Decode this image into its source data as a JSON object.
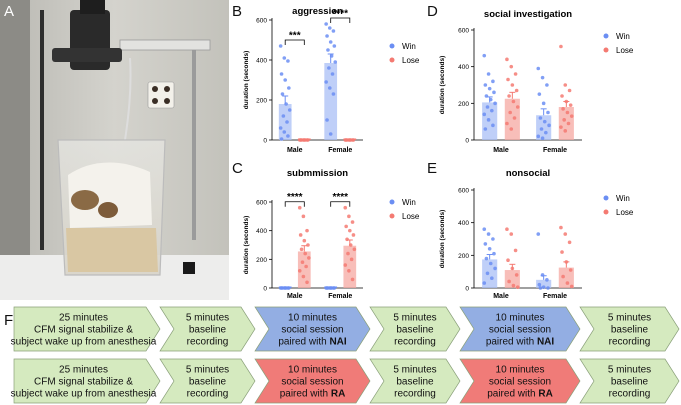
{
  "panels": {
    "A": "A",
    "B": "B",
    "C": "C",
    "D": "D",
    "E": "E",
    "F": "F"
  },
  "colors": {
    "win": "#6b8ef3",
    "lose": "#f47a72",
    "win_fill": "#a9bff5",
    "lose_fill": "#f5a8a2",
    "baseline_fill": "#d5eabf",
    "nai_fill": "#93aee3",
    "ra_fill": "#f07b78"
  },
  "chart_data": [
    {
      "id": "B",
      "type": "bar",
      "title": "aggression",
      "ylabel": "duration (seconds)",
      "categories": [
        "Male",
        "Female"
      ],
      "ylim": [
        0,
        600
      ],
      "yticks": [
        "0",
        "200",
        "400",
        "600"
      ],
      "legend": [
        "Win",
        "Lose"
      ],
      "series": [
        {
          "name": "Win",
          "values": [
            180,
            385
          ],
          "errors": [
            40,
            45
          ],
          "points": [
            [
              470,
              410,
              395,
              330,
              300,
              260,
              230,
              180,
              150,
              120,
              90,
              60,
              40,
              20,
              5
            ],
            [
              580,
              560,
              545,
              520,
              490,
              470,
              450,
              420,
              390,
              360,
              330,
              290,
              260,
              230,
              100,
              30
            ]
          ]
        },
        {
          "name": "Lose",
          "values": [
            0,
            0
          ],
          "errors": [
            0,
            0
          ],
          "points": [
            [
              0,
              0,
              0,
              0,
              0,
              0,
              0,
              0
            ],
            [
              0,
              0,
              0,
              0,
              0,
              0,
              0,
              0
            ]
          ]
        }
      ],
      "significance": [
        "***",
        "****"
      ]
    },
    {
      "id": "C",
      "type": "bar",
      "title": "submmission",
      "ylabel": "duration (seconds)",
      "categories": [
        "Male",
        "Female"
      ],
      "ylim": [
        0,
        600
      ],
      "yticks": [
        "0",
        "200",
        "400",
        "600"
      ],
      "legend": [
        "Win",
        "Lose"
      ],
      "series": [
        {
          "name": "Win",
          "values": [
            0,
            0
          ],
          "errors": [
            0,
            0
          ],
          "points": [
            [
              0,
              0,
              0,
              0,
              0,
              0,
              0,
              0
            ],
            [
              0,
              0,
              0,
              0,
              0,
              0,
              0,
              0
            ]
          ]
        },
        {
          "name": "Lose",
          "values": [
            255,
            295
          ],
          "errors": [
            40,
            40
          ],
          "points": [
            [
              560,
              500,
              400,
              370,
              330,
              300,
              270,
              240,
              210,
              180,
              150,
              120,
              80,
              40
            ],
            [
              560,
              500,
              460,
              430,
              400,
              370,
              340,
              300,
              270,
              240,
              200,
              160,
              120,
              60
            ]
          ]
        }
      ],
      "significance": [
        "****",
        "****"
      ]
    },
    {
      "id": "D",
      "type": "bar",
      "title": "social investigation",
      "ylabel": "duration (seconds)",
      "categories": [
        "Male",
        "Female"
      ],
      "ylim": [
        0,
        600
      ],
      "yticks": [
        "0",
        "200",
        "400",
        "600"
      ],
      "legend": [
        "Win",
        "Lose"
      ],
      "series": [
        {
          "name": "Win",
          "values": [
            205,
            135
          ],
          "errors": [
            30,
            35
          ],
          "points": [
            [
              460,
              360,
              320,
              300,
              280,
              260,
              240,
              220,
              200,
              180,
              160,
              140,
              110,
              80,
              60
            ],
            [
              390,
              340,
              300,
              250,
              200,
              150,
              120,
              100,
              80,
              60,
              40,
              20,
              10
            ]
          ]
        },
        {
          "name": "Lose",
          "values": [
            225,
            180
          ],
          "errors": [
            35,
            30
          ],
          "points": [
            [
              440,
              400,
              360,
              330,
              300,
              270,
              240,
              210,
              180,
              150,
              120,
              90,
              60
            ],
            [
              510,
              300,
              270,
              240,
              210,
              190,
              170,
              150,
              130,
              110,
              90,
              70,
              50
            ]
          ]
        }
      ]
    },
    {
      "id": "E",
      "type": "bar",
      "title": "nonsocial",
      "ylabel": "duration (seconds)",
      "categories": [
        "Male",
        "Female"
      ],
      "ylim": [
        0,
        600
      ],
      "yticks": [
        "0",
        "200",
        "400",
        "600"
      ],
      "legend": [
        "Win",
        "Lose"
      ],
      "series": [
        {
          "name": "Win",
          "values": [
            175,
            50
          ],
          "errors": [
            30,
            25
          ],
          "points": [
            [
              360,
              330,
              300,
              270,
              240,
              210,
              180,
              150,
              120,
              90,
              60,
              30
            ],
            [
              330,
              80,
              50,
              20,
              5,
              0,
              0
            ]
          ]
        },
        {
          "name": "Lose",
          "values": [
            110,
            125
          ],
          "errors": [
            35,
            35
          ],
          "points": [
            [
              360,
              330,
              230,
              170,
              120,
              80,
              40,
              15,
              5
            ],
            [
              370,
              330,
              280,
              220,
              160,
              110,
              70,
              30,
              10
            ]
          ]
        }
      ]
    }
  ],
  "flow": {
    "rows": [
      {
        "steps": [
          {
            "lines": [
              "25 minutes",
              "CFM signal stabilize &",
              "subject wake up from anesthesia"
            ],
            "kind": "baseline"
          },
          {
            "lines": [
              "5 minutes",
              "baseline",
              "recording"
            ],
            "kind": "baseline"
          },
          {
            "lines": [
              "10 minutes",
              "social session"
            ],
            "pair_prefix": "paired with ",
            "pair_bold": "NAI",
            "kind": "nai"
          },
          {
            "lines": [
              "5 minutes",
              "baseline",
              "recording"
            ],
            "kind": "baseline"
          },
          {
            "lines": [
              "10 minutes",
              "social session"
            ],
            "pair_prefix": "paired with ",
            "pair_bold": "NAI",
            "kind": "nai"
          },
          {
            "lines": [
              "5 minutes",
              "baseline",
              "recording"
            ],
            "kind": "baseline"
          }
        ]
      },
      {
        "steps": [
          {
            "lines": [
              "25 minutes",
              "CFM signal stabilize &",
              "subject wake up from anesthesia"
            ],
            "kind": "baseline"
          },
          {
            "lines": [
              "5 minutes",
              "baseline",
              "recording"
            ],
            "kind": "baseline"
          },
          {
            "lines": [
              "10 minutes",
              "social session"
            ],
            "pair_prefix": "paired with ",
            "pair_bold": "RA",
            "kind": "ra"
          },
          {
            "lines": [
              "5 minutes",
              "baseline",
              "recording"
            ],
            "kind": "baseline"
          },
          {
            "lines": [
              "10 minutes",
              "social session"
            ],
            "pair_prefix": "paired with ",
            "pair_bold": "RA",
            "kind": "ra"
          },
          {
            "lines": [
              "5 minutes",
              "baseline",
              "recording"
            ],
            "kind": "baseline"
          }
        ]
      }
    ]
  }
}
